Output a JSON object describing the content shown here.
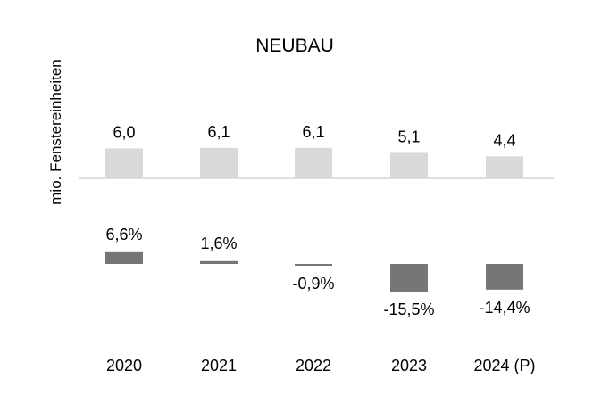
{
  "chart_data": {
    "type": "bar",
    "title": "NEUBAU",
    "ylabel": "mio. Fenstereinheiten",
    "categories": [
      "2020",
      "2021",
      "2022",
      "2023",
      "2024 (P)"
    ],
    "series": [
      {
        "values": [
          6.0,
          6.1,
          6.1,
          5.1,
          4.4
        ],
        "labels": [
          "6,0",
          "6,1",
          "6,1",
          "5,1",
          "4,4"
        ],
        "color": "#d9d9d9"
      },
      {
        "values": [
          6.6,
          1.6,
          -0.9,
          -15.5,
          -14.4
        ],
        "labels": [
          "6,6%",
          "1,6%",
          "-0,9%",
          "-15,5%",
          "-14,4%"
        ],
        "color": "#767676"
      }
    ],
    "grid": false,
    "legend": "none"
  }
}
